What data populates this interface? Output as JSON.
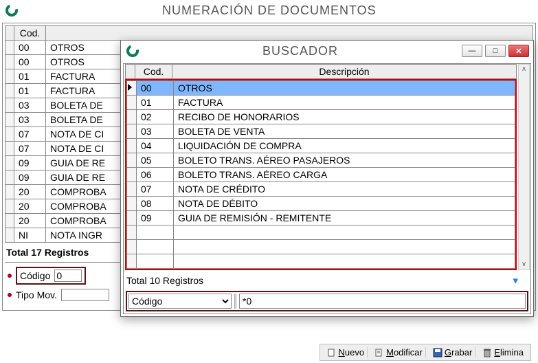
{
  "back": {
    "title": "NUMERACIÓN DE DOCUMENTOS",
    "columns": {
      "cod": "Cod.",
      "desc": ""
    },
    "rows": [
      {
        "cod": "00",
        "desc": "OTROS"
      },
      {
        "cod": "00",
        "desc": "OTROS"
      },
      {
        "cod": "01",
        "desc": "FACTURA"
      },
      {
        "cod": "01",
        "desc": "FACTURA"
      },
      {
        "cod": "03",
        "desc": "BOLETA DE"
      },
      {
        "cod": "03",
        "desc": "BOLETA DE"
      },
      {
        "cod": "07",
        "desc": "NOTA DE CI"
      },
      {
        "cod": "07",
        "desc": "NOTA DE CI"
      },
      {
        "cod": "09",
        "desc": "GUIA DE RE"
      },
      {
        "cod": "09",
        "desc": "GUIA DE RE"
      },
      {
        "cod": "20",
        "desc": "COMPROBA"
      },
      {
        "cod": "20",
        "desc": "COMPROBA"
      },
      {
        "cod": "20",
        "desc": "COMPROBA"
      },
      {
        "cod": "NI",
        "desc": "NOTA INGR"
      }
    ],
    "summary": "Total 17 Registros",
    "form": {
      "codigo_label": "Código",
      "codigo_value": "0",
      "tipo_label": "Tipo Mov."
    }
  },
  "front": {
    "title": "BUSCADOR",
    "columns": {
      "cod": "Cod.",
      "desc": "Descripción"
    },
    "rows": [
      {
        "cod": "00",
        "desc": "OTROS",
        "selected": true
      },
      {
        "cod": "01",
        "desc": "FACTURA"
      },
      {
        "cod": "02",
        "desc": "RECIBO DE HONORARIOS"
      },
      {
        "cod": "03",
        "desc": "BOLETA DE VENTA"
      },
      {
        "cod": "04",
        "desc": "LIQUIDACIÓN DE COMPRA"
      },
      {
        "cod": "05",
        "desc": "BOLETO TRANS. AÉREO PASAJEROS"
      },
      {
        "cod": "06",
        "desc": "BOLETO TRANS. AÉREO CARGA"
      },
      {
        "cod": "07",
        "desc": "NOTA DE CRÉDITO"
      },
      {
        "cod": "08",
        "desc": "NOTA DE DÉBITO"
      },
      {
        "cod": "09",
        "desc": "GUIA DE REMISIÓN - REMITENTE"
      }
    ],
    "summary": "Total 10 Registros",
    "filter_field_options": [
      "Código"
    ],
    "filter_field_value": "Código",
    "filter_text": "*0"
  },
  "toolbar": {
    "nuevo": "Nuevo",
    "modificar": "Modificar",
    "grabar": "Grabar",
    "elimina": "Elimina"
  },
  "colors": {
    "highlight_border": "#d20000",
    "dark_border": "#5a1212",
    "row_select": "#7fb7ff"
  }
}
